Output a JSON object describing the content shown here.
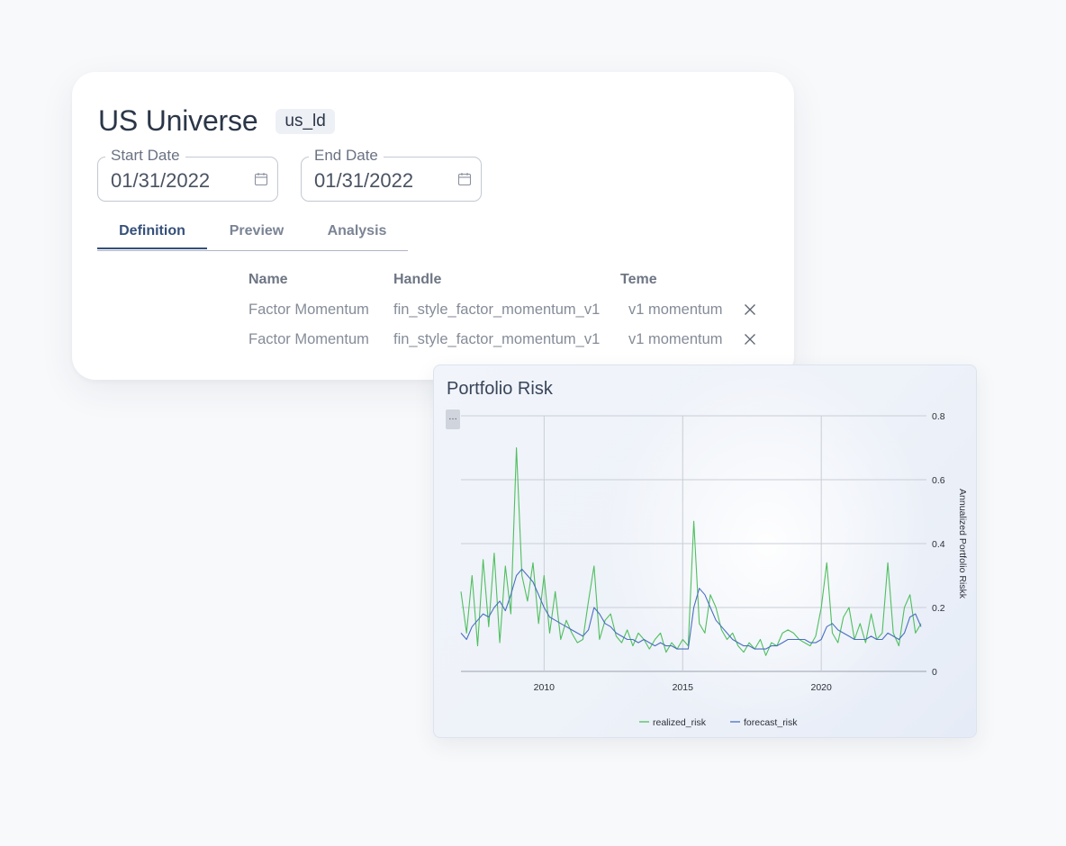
{
  "universe": {
    "title": "US Universe",
    "handle": "us_ld"
  },
  "dates": {
    "start_label": "Start Date",
    "start_value": "01/31/2022",
    "end_label": "End Date",
    "end_value": "01/31/2022"
  },
  "tabs": [
    {
      "label": "Definition",
      "active": true
    },
    {
      "label": "Preview",
      "active": false
    },
    {
      "label": "Analysis",
      "active": false
    }
  ],
  "factor_table": {
    "headers": [
      "Name",
      "Handle",
      "Teme"
    ],
    "rows": [
      {
        "name": "Factor Momentum",
        "handle": "fin_style_factor_momentum_v1",
        "teme": "v1 momentum"
      },
      {
        "name": "Factor Momentum",
        "handle": "fin_style_factor_momentum_v1",
        "teme": "v1 momentum"
      }
    ]
  },
  "icons": {
    "calendar": "calendar-icon",
    "remove": "close-icon",
    "menu": "more-icon"
  },
  "colors": {
    "realized": "#4fbf5f",
    "forecast": "#4a6ec0",
    "accent": "#35507a"
  },
  "risk_chart": {
    "title": "Portfolio Risk",
    "menu_label": "…"
  },
  "chart_data": {
    "type": "line",
    "title": "Portfolio Risk",
    "xlabel": "",
    "ylabel": "Annualized Portfolio Riskk",
    "xlim": [
      2007.0,
      2023.6
    ],
    "ylim": [
      0,
      0.8
    ],
    "x_ticks": [
      2010,
      2015,
      2020
    ],
    "y_ticks": [
      0,
      0.2,
      0.4,
      0.6,
      0.8
    ],
    "y_axis_side": "right",
    "grid": true,
    "legend_position": "bottom-center",
    "series": [
      {
        "name": "realized_risk",
        "x": [
          2007.0,
          2007.2,
          2007.4,
          2007.6,
          2007.8,
          2008.0,
          2008.2,
          2008.4,
          2008.6,
          2008.8,
          2009.0,
          2009.2,
          2009.4,
          2009.6,
          2009.8,
          2010.0,
          2010.2,
          2010.4,
          2010.6,
          2010.8,
          2011.0,
          2011.2,
          2011.4,
          2011.6,
          2011.8,
          2012.0,
          2012.2,
          2012.4,
          2012.6,
          2012.8,
          2013.0,
          2013.2,
          2013.4,
          2013.6,
          2013.8,
          2014.0,
          2014.2,
          2014.4,
          2014.6,
          2014.8,
          2015.0,
          2015.2,
          2015.4,
          2015.6,
          2015.8,
          2016.0,
          2016.2,
          2016.4,
          2016.6,
          2016.8,
          2017.0,
          2017.2,
          2017.4,
          2017.6,
          2017.8,
          2018.0,
          2018.2,
          2018.4,
          2018.6,
          2018.8,
          2019.0,
          2019.2,
          2019.4,
          2019.6,
          2019.8,
          2020.0,
          2020.2,
          2020.4,
          2020.6,
          2020.8,
          2021.0,
          2021.2,
          2021.4,
          2021.6,
          2021.8,
          2022.0,
          2022.2,
          2022.4,
          2022.6,
          2022.8,
          2023.0,
          2023.2,
          2023.4,
          2023.6
        ],
        "y": [
          0.25,
          0.12,
          0.3,
          0.08,
          0.35,
          0.14,
          0.37,
          0.09,
          0.33,
          0.18,
          0.7,
          0.3,
          0.22,
          0.34,
          0.15,
          0.3,
          0.12,
          0.25,
          0.1,
          0.16,
          0.12,
          0.09,
          0.1,
          0.22,
          0.33,
          0.1,
          0.16,
          0.18,
          0.11,
          0.09,
          0.13,
          0.08,
          0.12,
          0.1,
          0.07,
          0.1,
          0.12,
          0.06,
          0.09,
          0.07,
          0.1,
          0.08,
          0.47,
          0.15,
          0.12,
          0.24,
          0.2,
          0.13,
          0.1,
          0.12,
          0.08,
          0.06,
          0.09,
          0.07,
          0.1,
          0.05,
          0.09,
          0.08,
          0.12,
          0.13,
          0.12,
          0.1,
          0.09,
          0.08,
          0.11,
          0.2,
          0.34,
          0.12,
          0.09,
          0.17,
          0.2,
          0.1,
          0.15,
          0.09,
          0.18,
          0.1,
          0.12,
          0.34,
          0.12,
          0.08,
          0.2,
          0.24,
          0.12,
          0.15
        ]
      },
      {
        "name": "forecast_risk",
        "x": [
          2007.0,
          2007.2,
          2007.4,
          2007.6,
          2007.8,
          2008.0,
          2008.2,
          2008.4,
          2008.6,
          2008.8,
          2009.0,
          2009.2,
          2009.4,
          2009.6,
          2009.8,
          2010.0,
          2010.2,
          2010.4,
          2010.6,
          2010.8,
          2011.0,
          2011.2,
          2011.4,
          2011.6,
          2011.8,
          2012.0,
          2012.2,
          2012.4,
          2012.6,
          2012.8,
          2013.0,
          2013.2,
          2013.4,
          2013.6,
          2013.8,
          2014.0,
          2014.2,
          2014.4,
          2014.6,
          2014.8,
          2015.0,
          2015.2,
          2015.4,
          2015.6,
          2015.8,
          2016.0,
          2016.2,
          2016.4,
          2016.6,
          2016.8,
          2017.0,
          2017.2,
          2017.4,
          2017.6,
          2017.8,
          2018.0,
          2018.2,
          2018.4,
          2018.6,
          2018.8,
          2019.0,
          2019.2,
          2019.4,
          2019.6,
          2019.8,
          2020.0,
          2020.2,
          2020.4,
          2020.6,
          2020.8,
          2021.0,
          2021.2,
          2021.4,
          2021.6,
          2021.8,
          2022.0,
          2022.2,
          2022.4,
          2022.6,
          2022.8,
          2023.0,
          2023.2,
          2023.4,
          2023.6
        ],
        "y": [
          0.12,
          0.1,
          0.14,
          0.16,
          0.18,
          0.17,
          0.2,
          0.22,
          0.19,
          0.24,
          0.3,
          0.32,
          0.3,
          0.28,
          0.24,
          0.2,
          0.17,
          0.16,
          0.15,
          0.14,
          0.13,
          0.12,
          0.11,
          0.13,
          0.2,
          0.18,
          0.15,
          0.14,
          0.12,
          0.11,
          0.1,
          0.1,
          0.09,
          0.1,
          0.09,
          0.08,
          0.09,
          0.08,
          0.08,
          0.07,
          0.07,
          0.07,
          0.2,
          0.26,
          0.24,
          0.2,
          0.16,
          0.14,
          0.12,
          0.1,
          0.09,
          0.08,
          0.08,
          0.07,
          0.07,
          0.07,
          0.08,
          0.08,
          0.09,
          0.1,
          0.1,
          0.1,
          0.1,
          0.09,
          0.09,
          0.1,
          0.14,
          0.15,
          0.13,
          0.12,
          0.11,
          0.1,
          0.1,
          0.1,
          0.11,
          0.1,
          0.1,
          0.12,
          0.11,
          0.1,
          0.12,
          0.17,
          0.18,
          0.14
        ]
      }
    ]
  }
}
